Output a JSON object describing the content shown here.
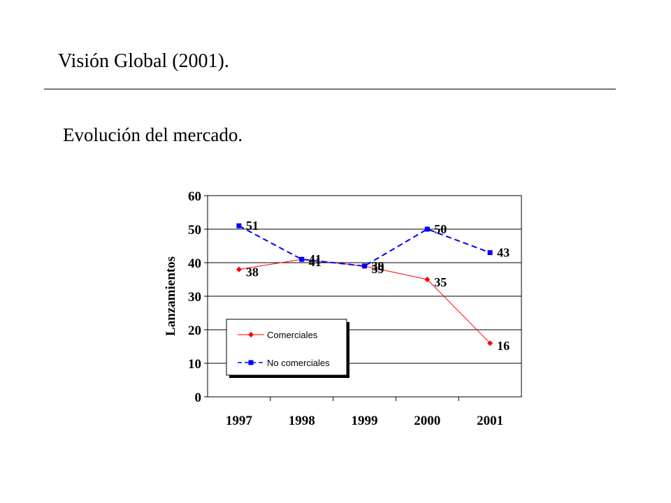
{
  "slide": {
    "title": "Visión Global (2001).",
    "subtitle": "Evolución del mercado."
  },
  "chart_data": {
    "type": "line",
    "categories": [
      "1997",
      "1998",
      "1999",
      "2000",
      "2001"
    ],
    "ylabel": "Lanzamientos",
    "xlabel": "",
    "ylim": [
      0,
      60
    ],
    "yticks": [
      0,
      10,
      20,
      30,
      40,
      50,
      60
    ],
    "grid": true,
    "legend": "lower-left",
    "series": [
      {
        "name": "Comerciales",
        "values": [
          38,
          41,
          39,
          35,
          16
        ],
        "color": "#ff0000",
        "marker": "diamond",
        "dash": "solid"
      },
      {
        "name": "No comerciales",
        "values": [
          51,
          41,
          39,
          50,
          43
        ],
        "color": "#0000ff",
        "marker": "square",
        "dash": "dashed"
      }
    ]
  }
}
